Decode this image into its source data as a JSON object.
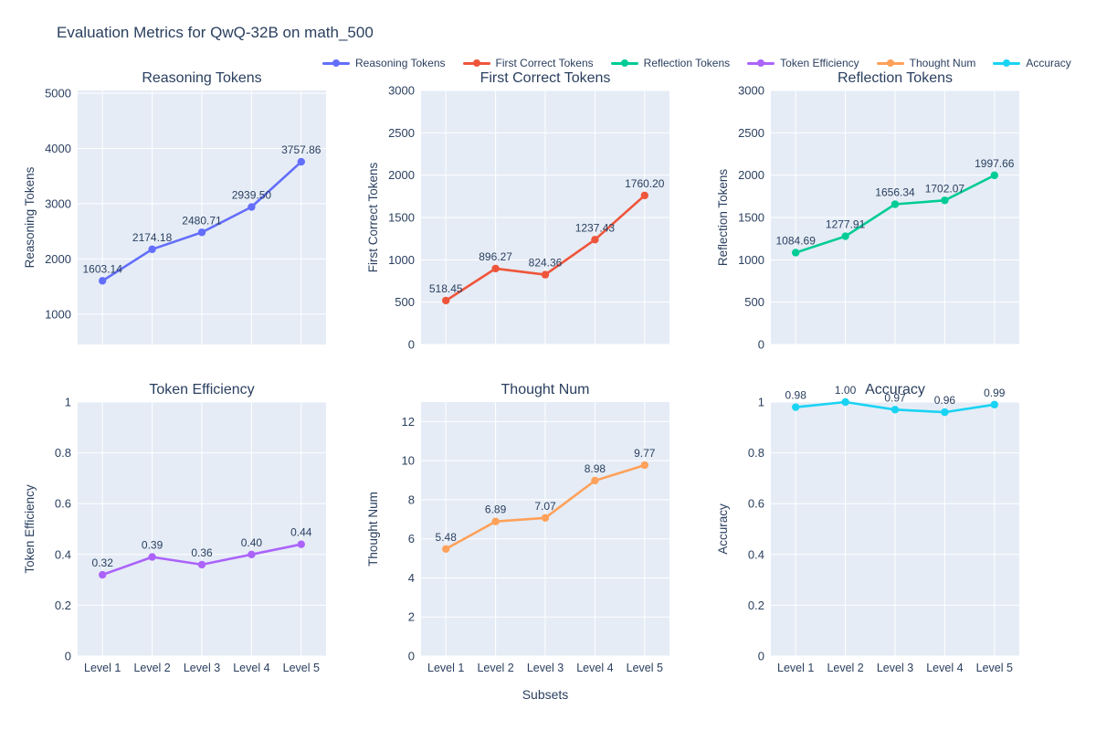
{
  "title": "Evaluation Metrics for QwQ-32B on math_500",
  "xlabel": "Subsets",
  "theme": {
    "plot_bg": "#E5ECF6",
    "grid_color": "#ffffff",
    "text_color": "#2a3f5f",
    "paper_bg": "#ffffff"
  },
  "legend": [
    {
      "label": "Reasoning Tokens",
      "color": "#636EFA"
    },
    {
      "label": "First Correct Tokens",
      "color": "#EF553B"
    },
    {
      "label": "Reflection Tokens",
      "color": "#00CC96"
    },
    {
      "label": "Token Efficiency",
      "color": "#AB63FA"
    },
    {
      "label": "Thought Num",
      "color": "#FFA15A"
    },
    {
      "label": "Accuracy",
      "color": "#19D3F3"
    }
  ],
  "chart_data": [
    {
      "id": "reasoning-tokens",
      "type": "line",
      "title": "Reasoning Tokens",
      "ylabel": "Reasoning Tokens",
      "color": "#636EFA",
      "categories": [
        "Level 1",
        "Level 2",
        "Level 3",
        "Level 4",
        "Level 5"
      ],
      "values": [
        1603.14,
        2174.18,
        2480.71,
        2939.5,
        3757.86
      ],
      "point_labels": [
        "1603.14",
        "2174.18",
        "2480.71",
        "2939.50",
        "3757.86"
      ],
      "yticks": [
        1000,
        2000,
        3000,
        4000,
        5000
      ],
      "ytick_labels": [
        "1000",
        "2000",
        "3000",
        "4000",
        "5000"
      ],
      "ylim": [
        450,
        5050
      ],
      "show_x_ticks": false,
      "grid": true
    },
    {
      "id": "first-correct-tokens",
      "type": "line",
      "title": "First Correct Tokens",
      "ylabel": "First Correct Tokens",
      "color": "#EF553B",
      "categories": [
        "Level 1",
        "Level 2",
        "Level 3",
        "Level 4",
        "Level 5"
      ],
      "values": [
        518.45,
        896.27,
        824.36,
        1237.43,
        1760.2
      ],
      "point_labels": [
        "518.45",
        "896.27",
        "824.36",
        "1237.43",
        "1760.20"
      ],
      "yticks": [
        0,
        500,
        1000,
        1500,
        2000,
        2500,
        3000
      ],
      "ytick_labels": [
        "0",
        "500",
        "1000",
        "1500",
        "2000",
        "2500",
        "3000"
      ],
      "ylim": [
        0,
        3000
      ],
      "show_x_ticks": false,
      "grid": true
    },
    {
      "id": "reflection-tokens",
      "type": "line",
      "title": "Reflection Tokens",
      "ylabel": "Reflection Tokens",
      "color": "#00CC96",
      "categories": [
        "Level 1",
        "Level 2",
        "Level 3",
        "Level 4",
        "Level 5"
      ],
      "values": [
        1084.69,
        1277.91,
        1656.34,
        1702.07,
        1997.66
      ],
      "point_labels": [
        "1084.69",
        "1277.91",
        "1656.34",
        "1702.07",
        "1997.66"
      ],
      "yticks": [
        0,
        500,
        1000,
        1500,
        2000,
        2500,
        3000
      ],
      "ytick_labels": [
        "0",
        "500",
        "1000",
        "1500",
        "2000",
        "2500",
        "3000"
      ],
      "ylim": [
        0,
        3000
      ],
      "show_x_ticks": false,
      "grid": true
    },
    {
      "id": "token-efficiency",
      "type": "line",
      "title": "Token Efficiency",
      "ylabel": "Token Efficiency",
      "color": "#AB63FA",
      "categories": [
        "Level 1",
        "Level 2",
        "Level 3",
        "Level 4",
        "Level 5"
      ],
      "values": [
        0.32,
        0.39,
        0.36,
        0.4,
        0.44
      ],
      "point_labels": [
        "0.32",
        "0.39",
        "0.36",
        "0.40",
        "0.44"
      ],
      "yticks": [
        0,
        0.2,
        0.4,
        0.6,
        0.8,
        1
      ],
      "ytick_labels": [
        "0",
        "0.2",
        "0.4",
        "0.6",
        "0.8",
        "1"
      ],
      "ylim": [
        0,
        1
      ],
      "show_x_ticks": true,
      "grid": true
    },
    {
      "id": "thought-num",
      "type": "line",
      "title": "Thought Num",
      "ylabel": "Thought Num",
      "color": "#FFA15A",
      "categories": [
        "Level 1",
        "Level 2",
        "Level 3",
        "Level 4",
        "Level 5"
      ],
      "values": [
        5.48,
        6.89,
        7.07,
        8.98,
        9.77
      ],
      "point_labels": [
        "5.48",
        "6.89",
        "7.07",
        "8.98",
        "9.77"
      ],
      "yticks": [
        0,
        2,
        4,
        6,
        8,
        10,
        12
      ],
      "ytick_labels": [
        "0",
        "2",
        "4",
        "6",
        "8",
        "10",
        "12"
      ],
      "ylim": [
        0,
        13
      ],
      "show_x_ticks": true,
      "grid": true
    },
    {
      "id": "accuracy",
      "type": "line",
      "title": "Accuracy",
      "ylabel": "Accuracy",
      "color": "#19D3F3",
      "categories": [
        "Level 1",
        "Level 2",
        "Level 3",
        "Level 4",
        "Level 5"
      ],
      "values": [
        0.98,
        1.0,
        0.97,
        0.96,
        0.99
      ],
      "point_labels": [
        "0.98",
        "1.00",
        "0.97",
        "0.96",
        "0.99"
      ],
      "yticks": [
        0,
        0.2,
        0.4,
        0.6,
        0.8,
        1
      ],
      "ytick_labels": [
        "0",
        "0.2",
        "0.4",
        "0.6",
        "0.8",
        "1"
      ],
      "ylim": [
        0,
        1
      ],
      "show_x_ticks": true,
      "grid": true
    }
  ],
  "layout": {
    "legend_position": "top-horizontal",
    "rows": 2,
    "cols": 3
  }
}
